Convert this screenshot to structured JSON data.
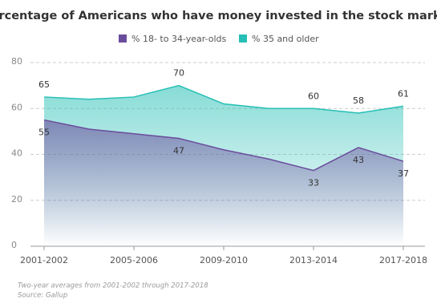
{
  "chart_data": {
    "type": "area",
    "title": "Percentage of Americans who have money invested in the stock market",
    "categories": [
      "2001-2002",
      null,
      "2005-2006",
      null,
      "2009-2010",
      null,
      "2013-2014",
      null,
      "2017-2018"
    ],
    "series": [
      {
        "name": "% 18- to 34-year-olds",
        "color": "#6a4c9c",
        "values": [
          55,
          51,
          49,
          47,
          42,
          38,
          33,
          43,
          37
        ],
        "value_labels": [
          "55",
          null,
          null,
          "47",
          null,
          null,
          "33",
          "43",
          "37"
        ]
      },
      {
        "name": "% 35 and older",
        "color": "#26bfb5",
        "values": [
          65,
          64,
          65,
          70,
          62,
          60,
          60,
          58,
          61
        ],
        "value_labels": [
          "65",
          null,
          null,
          "70",
          null,
          null,
          "60",
          "58",
          "61"
        ]
      }
    ],
    "ylim": [
      0,
      80
    ],
    "yticks": [
      0,
      20,
      40,
      60,
      80
    ],
    "grid": true,
    "footnotes": [
      "Two-year averages from 2001-2002 through 2017-2018",
      "Source: Gallup"
    ]
  }
}
